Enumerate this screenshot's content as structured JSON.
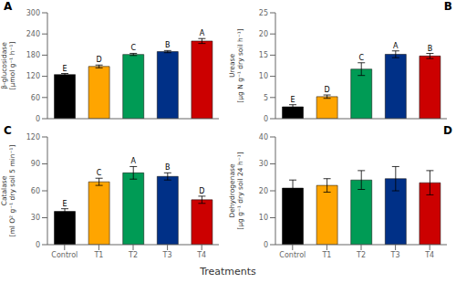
{
  "chart_data": [
    {
      "type": "bar",
      "title": "A",
      "categories": [
        "Control",
        "T1",
        "T2",
        "T3",
        "T4"
      ],
      "values": [
        125,
        148,
        182,
        190,
        220
      ],
      "errors": [
        3,
        4,
        3,
        3,
        7
      ],
      "colors": [
        "#000000",
        "#FFA500",
        "#009B55",
        "#003087",
        "#CC0000"
      ],
      "annotations": [
        "E",
        "D",
        "C",
        "B",
        "A"
      ],
      "ylabel": "β-glucosidase\n[μmol g⁻¹ h⁻¹]",
      "ylim": [
        0,
        300
      ],
      "yticks": [
        0,
        60,
        120,
        180,
        240,
        300
      ],
      "tick_labels": "y"
    },
    {
      "type": "bar",
      "title": "B",
      "categories": [
        "Control",
        "T1",
        "T2",
        "T3",
        "T4"
      ],
      "values": [
        2.8,
        5.2,
        11.7,
        15.2,
        14.8
      ],
      "errors": [
        0.5,
        0.4,
        1.5,
        0.8,
        0.6
      ],
      "colors": [
        "#000000",
        "#FFA500",
        "#009B55",
        "#003087",
        "#CC0000"
      ],
      "annotations": [
        "E",
        "D",
        "C",
        "A",
        "B"
      ],
      "ylabel": "Urease\n[μg N g⁻¹ dry soil h⁻¹]",
      "ylim": [
        0,
        25
      ],
      "yticks": [
        0,
        5,
        10,
        15,
        20,
        25
      ],
      "tick_labels": "y"
    },
    {
      "type": "bar",
      "title": "C",
      "categories": [
        "Control",
        "T1",
        "T2",
        "T3",
        "T4"
      ],
      "values": [
        37,
        70,
        80,
        76,
        50
      ],
      "errors": [
        3,
        4,
        7,
        4,
        4
      ],
      "colors": [
        "#000000",
        "#FFA500",
        "#009B55",
        "#003087",
        "#CC0000"
      ],
      "annotations": [
        "E",
        "C",
        "A",
        "B",
        "D"
      ],
      "ylabel": "Catalase\n[ml O² g⁻¹ dry soil 5 min⁻¹]",
      "ylim": [
        0,
        120
      ],
      "yticks": [
        0,
        30,
        60,
        90,
        120
      ],
      "xlabel": "Treatments"
    },
    {
      "type": "bar",
      "title": "D",
      "categories": [
        "Control",
        "T1",
        "T2",
        "T3",
        "T4"
      ],
      "values": [
        21,
        22,
        24,
        24.5,
        23
      ],
      "errors": [
        3,
        2.5,
        3.5,
        4.5,
        4.5
      ],
      "colors": [
        "#000000",
        "#FFA500",
        "#009B55",
        "#003087",
        "#CC0000"
      ],
      "ylabel": "Dehydrogenase\n[μg g⁻¹ dry soil 24 h⁻¹]",
      "ylim": [
        0,
        40
      ],
      "yticks": [
        0,
        10,
        20,
        30,
        40
      ]
    }
  ]
}
